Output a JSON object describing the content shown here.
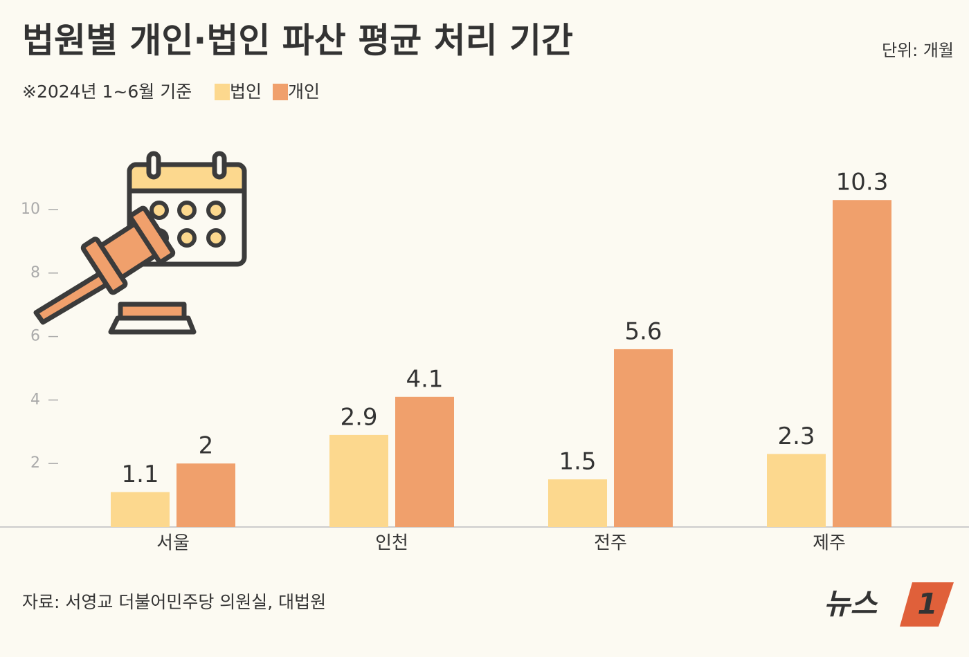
{
  "chart_data": {
    "type": "bar",
    "title": "법원별 개인·법인 파산 평균 처리 기간",
    "unit": "단위: 개월",
    "note": "※2024년 1~6월 기준",
    "source": "자료: 서영교 더불어민주당 의원실, 대법원",
    "logo": [
      "뉴스",
      "1"
    ],
    "categories": [
      "서울",
      "인천",
      "전주",
      "제주"
    ],
    "series": [
      {
        "name": "법인",
        "color": "#fcd88e",
        "values": [
          1.1,
          2.9,
          1.5,
          2.3
        ]
      },
      {
        "name": "개인",
        "color": "#f0a06c",
        "values": [
          2,
          4.1,
          5.6,
          10.3
        ]
      }
    ],
    "ylim": [
      0,
      12
    ],
    "yticks": [
      2,
      4,
      6,
      8,
      10
    ],
    "grid": false
  }
}
